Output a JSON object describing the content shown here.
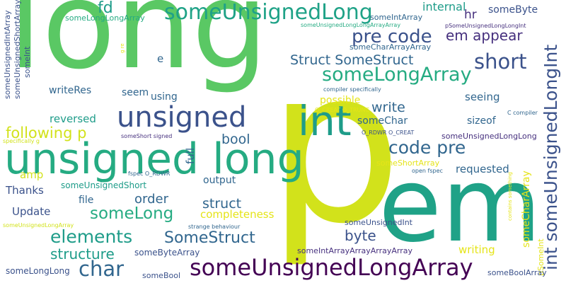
{
  "palette": {
    "green": "#5ac864",
    "yellowgreen": "#d2e21b",
    "teal": "#1fa287",
    "tealgreen": "#25ab82",
    "cyan": "#1e9c89",
    "navy": "#2d6e8e",
    "blue": "#31668e",
    "indigo": "#3b528b",
    "purple": "#46307e",
    "darkpurple": "#440154",
    "lime": "#7ad151",
    "yellow": "#e5e419"
  },
  "words": {
    "long": "long",
    "p": "p",
    "em": "em",
    "int": "int",
    "unsigned_long": "unsigned long",
    "unsigned": "unsigned",
    "someUnsignedLong": "someUnsignedLong",
    "someUnsignedLongArray": "someUnsignedLongArray",
    "pre_code": "pre code",
    "em_appear": "em appear",
    "someLongArray": "someLongArray",
    "short": "short",
    "Struct_SomeStruct": "Struct SomeStruct",
    "int_someUnsignedLongInt": "int someUnsignedLongInt",
    "code_pre": "code pre",
    "char": "char",
    "elements": "elements",
    "SomeStruct": "SomeStruct",
    "someLong": "someLong",
    "structure": "structure",
    "following_p": "following p",
    "write": "write",
    "fd": "fd",
    "bool": "bool",
    "struct": "struct",
    "order": "order",
    "byte": "byte",
    "writeRes": "writeRes",
    "reversed": "reversed",
    "Thanks": "Thanks",
    "Update": "Update",
    "amp": "amp",
    "internal": "internal",
    "hr": "hr",
    "someByte": "someByte",
    "someIntArray": "someIntArray",
    "someLongLongArray": "someLongLongArray",
    "someCharArrayArray": "someCharArrayArray",
    "someUnsignedLongLongArrayArray": "someUnsignedLongLongArrayArray",
    "pSomeUnsignedLongLongInt": "pSomeUnsignedLongLongInt",
    "someUnsignedIntArray": "someUnsignedIntArray",
    "someUnsignedShortArray": "someUnsignedShortArray",
    "someInt": "someInt",
    "g_re": "g re",
    "e": "e",
    "seem": "seem",
    "using": "using",
    "seeing": "seeing",
    "possible": "possible",
    "compiler_specifically": "compiler specifically",
    "O_CREAT_O_TRUNC": "O_CREAT O_TRUNC",
    "someChar": "someChar",
    "sizeof": "sizeof",
    "C_compiler": "C compiler",
    "O_RDWR_O_CREAT": "O_RDWR O_CREAT",
    "someUnsignedLongLong": "someUnsignedLongLong",
    "someShort_signed": "someShort signed",
    "specifically_g": "specifically g",
    "full": "full",
    "someShortArray": "someShortArray",
    "fspec_O_RDWR": "fspec O_RDWR",
    "requested": "requested",
    "open_fspec": "open fspec",
    "someUnsignedShort": "someUnsignedShort",
    "output": "output",
    "file": "file",
    "completeness": "completeness",
    "someCharArray": "someCharArray",
    "contains_something": "contains something",
    "someUnsignedLongArray_small": "someUnsignedLongArray",
    "strange_behaviour": "strange behaviour",
    "someUnsignedInt": "someUnsignedInt",
    "someByteArray": "someByteArray",
    "writing": "writing",
    "someIntArrayArrayArrayArray": "someIntArrayArrayArrayArray",
    "pSomeInt": "pSomeInt",
    "someLongLong": "someLongLong",
    "someBool": "someBool",
    "someBoolArray": "someBoolArray"
  }
}
